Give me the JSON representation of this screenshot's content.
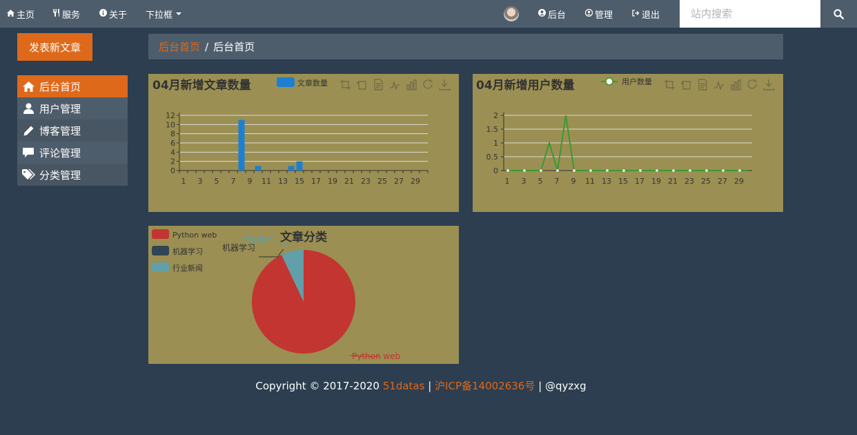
{
  "nav": {
    "home": "主页",
    "services": "服务",
    "about": "关于",
    "dropdown": "下拉框",
    "admin": "后台",
    "manage": "管理",
    "logout": "退出",
    "search_placeholder": "站内搜索"
  },
  "sidebar": {
    "publish_button": "发表新文章",
    "items": [
      {
        "label": "后台首页",
        "icon": "home-icon"
      },
      {
        "label": "用户管理",
        "icon": "user-icon"
      },
      {
        "label": "博客管理",
        "icon": "pencil-icon"
      },
      {
        "label": "评论管理",
        "icon": "comment-icon"
      },
      {
        "label": "分类管理",
        "icon": "tags-icon"
      }
    ]
  },
  "breadcrumb": {
    "link": "后台首页",
    "separator": "/",
    "current": "后台首页"
  },
  "colors": {
    "accent": "#df691a",
    "nav_bg": "#4e5d6c",
    "page_bg": "#2c3e50",
    "chart_bg": "#9b8f53",
    "bar": "#1e7fd0",
    "line": "#3a9a30",
    "pie_python": "#c23531",
    "pie_ml": "#2f4554",
    "pie_news": "#61a0a8"
  },
  "chart_data": [
    {
      "type": "bar",
      "title": "04月新增文章数量",
      "legend": [
        "文章数量"
      ],
      "x_ticks": [
        "1",
        "3",
        "5",
        "7",
        "9",
        "11",
        "13",
        "15",
        "17",
        "19",
        "21",
        "23",
        "25",
        "27",
        "29"
      ],
      "ylim": [
        0,
        12
      ],
      "y_ticks": [
        "0",
        "2",
        "4",
        "6",
        "8",
        "10",
        "12"
      ],
      "series": [
        {
          "name": "文章数量",
          "points": [
            [
              8,
              11
            ],
            [
              10,
              1
            ],
            [
              14,
              1
            ],
            [
              15,
              2
            ]
          ]
        }
      ]
    },
    {
      "type": "line",
      "title": "04月新增用户数量",
      "legend": [
        "用户数量"
      ],
      "x_ticks": [
        "1",
        "3",
        "5",
        "7",
        "9",
        "11",
        "13",
        "15",
        "17",
        "19",
        "21",
        "23",
        "25",
        "27",
        "29"
      ],
      "ylim": [
        0,
        2
      ],
      "y_ticks": [
        "0",
        "0.5",
        "1",
        "1.5",
        "2"
      ],
      "series": [
        {
          "name": "用户数量",
          "values": [
            0,
            0,
            0,
            0,
            0,
            1,
            0,
            2,
            0,
            0,
            0,
            0,
            0,
            0,
            0,
            0,
            0,
            0,
            0,
            0,
            0,
            0,
            0,
            0,
            0,
            0,
            0,
            0,
            0,
            0
          ]
        }
      ]
    },
    {
      "type": "pie",
      "title": "文章分类",
      "legend": [
        "Python web",
        "机器学习",
        "行业新闻"
      ],
      "slices": [
        {
          "name": "Python web",
          "value": 93
        },
        {
          "name": "机器学习",
          "value": 0
        },
        {
          "name": "行业新闻",
          "value": 7
        }
      ],
      "labels_shown": [
        "Python web",
        "机器学习",
        "行业新闻"
      ]
    }
  ],
  "footer": {
    "prefix": "Copyright © 2017-2020 ",
    "site": "51datas",
    "sep1": " | ",
    "icp": "沪ICP备14002636号",
    "sep2": " | ",
    "author": "@qyzxg"
  }
}
